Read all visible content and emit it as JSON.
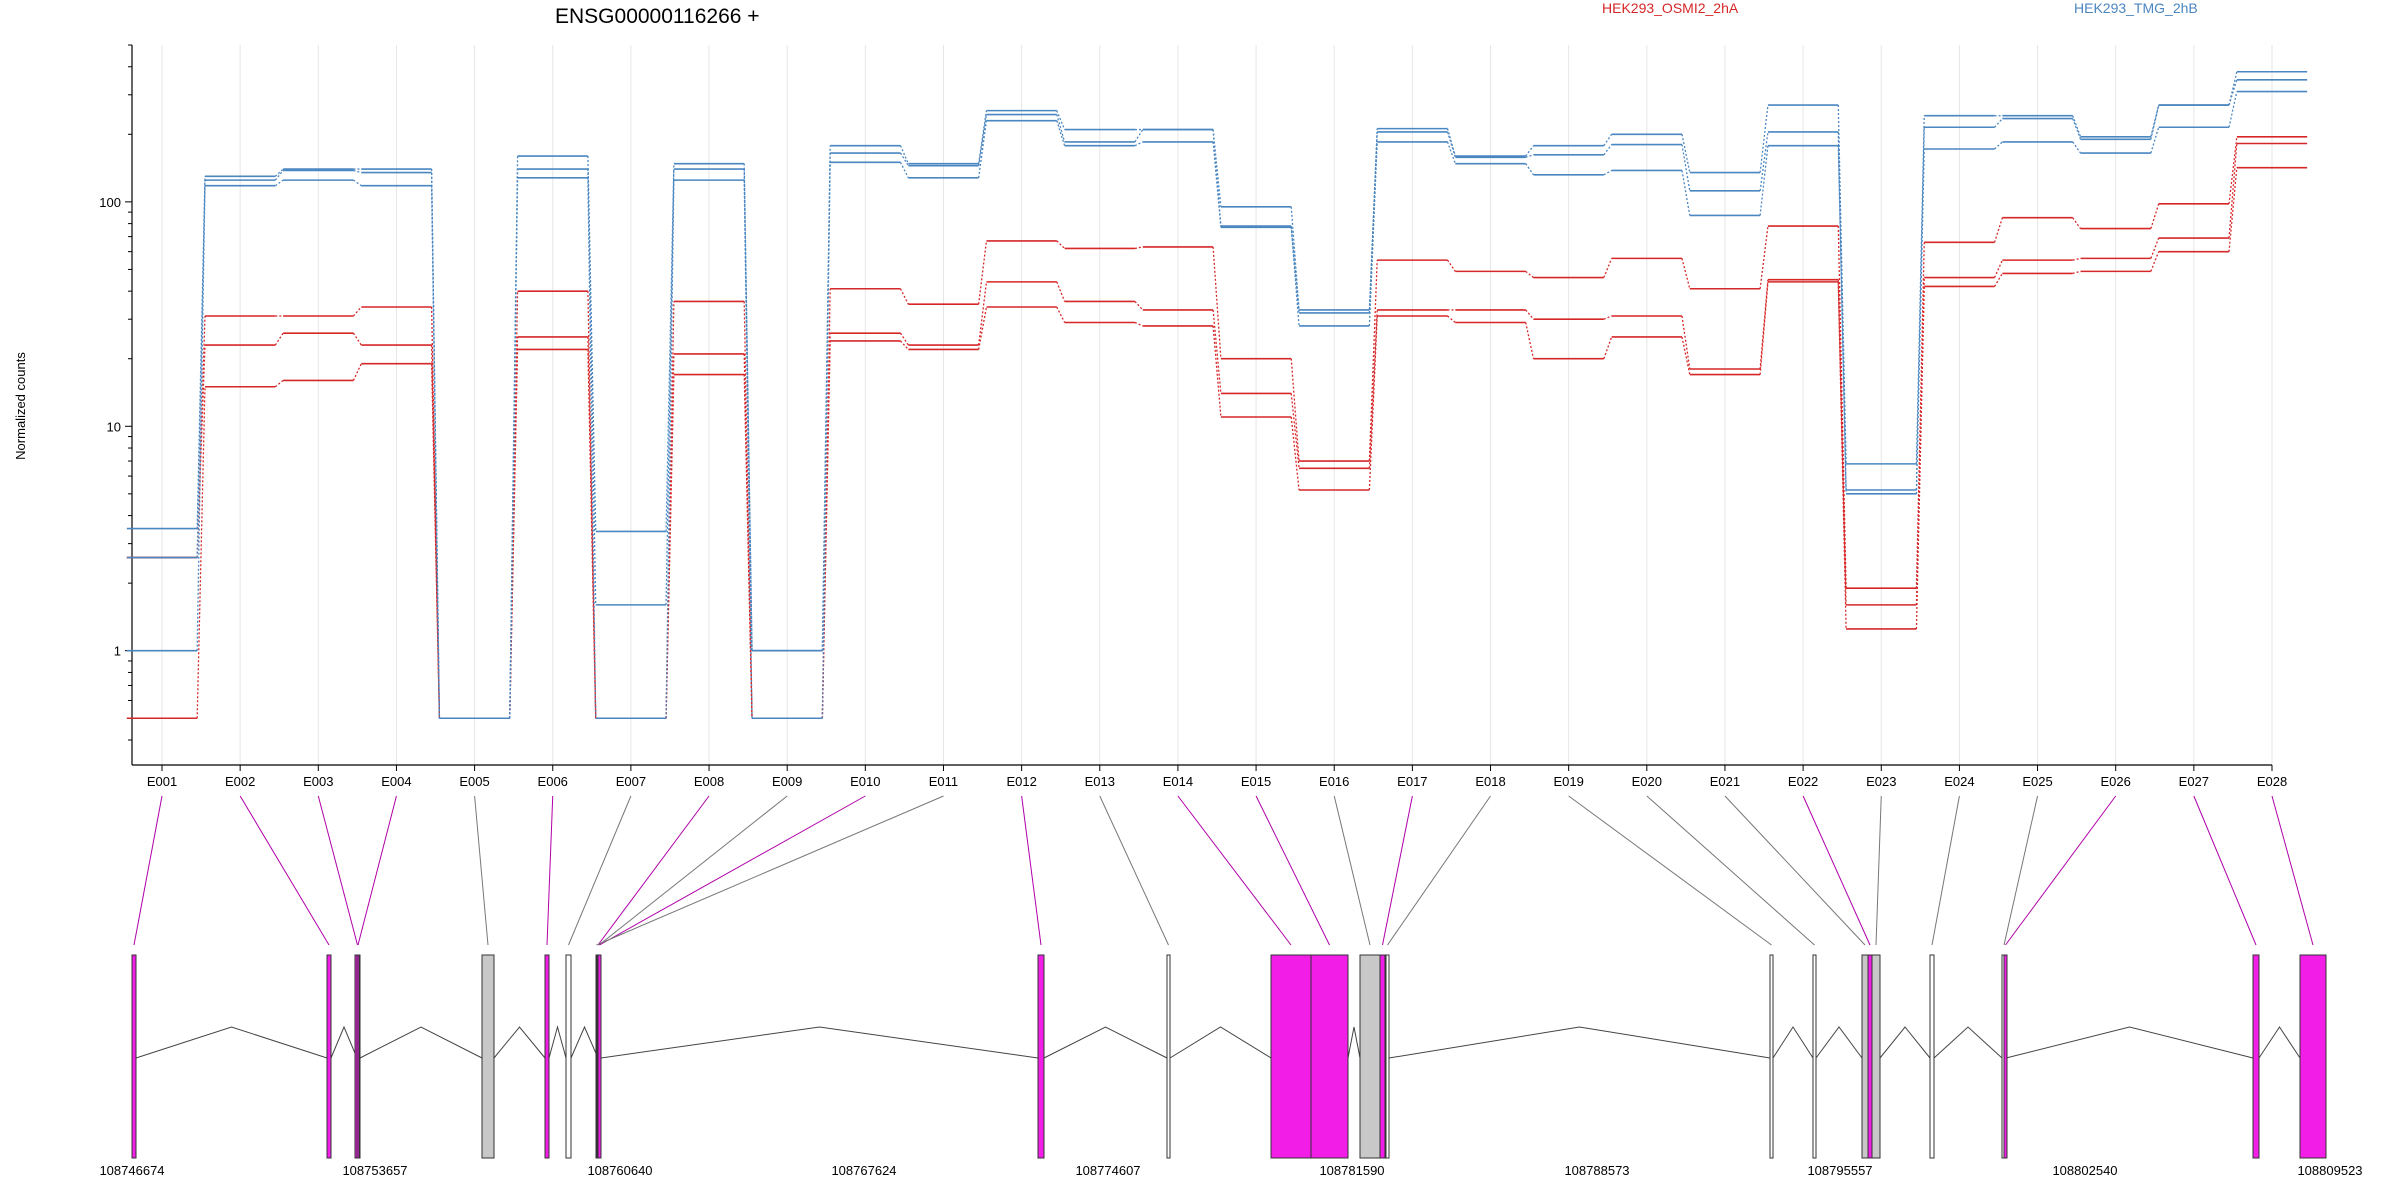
{
  "chart_data": {
    "type": "line",
    "title": "ENSG00000116266 +",
    "ylabel": "Normalized counts",
    "yscale": "log",
    "ylim": [
      0.4,
      500
    ],
    "y_ticks": [
      1,
      10,
      100
    ],
    "y_tick_labels": [
      "1",
      "10",
      "100"
    ],
    "grid": "vertical gridlines at exon bins",
    "legend_placement": "top, above plot",
    "categories": [
      "E001",
      "E002",
      "E003",
      "E004",
      "E005",
      "E006",
      "E007",
      "E008",
      "E009",
      "E010",
      "E011",
      "E012",
      "E013",
      "E014",
      "E015",
      "E016",
      "E017",
      "E018",
      "E019",
      "E020",
      "E021",
      "E022",
      "E023",
      "E024",
      "E025",
      "E026",
      "E027",
      "E028"
    ],
    "groups": [
      {
        "name": "HEK293_OSMI2_2hA",
        "color": "#d62728"
      },
      {
        "name": "HEK293_TMG_2hB",
        "color": "#4a86c0"
      }
    ],
    "series": [
      {
        "group": "HEK293_OSMI2_2hA",
        "values": [
          2.6,
          31,
          31,
          34,
          0.5,
          40,
          0.5,
          36,
          0.5,
          41,
          35,
          67,
          62,
          63,
          20,
          7,
          55,
          49,
          46,
          56,
          41,
          78,
          1.9,
          66,
          85,
          76,
          98,
          195
        ]
      },
      {
        "group": "HEK293_OSMI2_2hA",
        "values": [
          2.6,
          23,
          26,
          23,
          0.5,
          25,
          0.5,
          21,
          0.5,
          26,
          23,
          44,
          36,
          33,
          14,
          6.5,
          33,
          33,
          30,
          31,
          18,
          45,
          1.6,
          46,
          55,
          56,
          69,
          182
        ]
      },
      {
        "group": "HEK293_OSMI2_2hA",
        "values": [
          0.5,
          15,
          16,
          19,
          0.5,
          22,
          0.5,
          17,
          0.5,
          24,
          22,
          34,
          29,
          28,
          11,
          5.2,
          31,
          29,
          20,
          25,
          17,
          44,
          1.25,
          42,
          48,
          49,
          60,
          142
        ]
      },
      {
        "group": "HEK293_TMG_2hB",
        "values": [
          3.5,
          130,
          140,
          140,
          0.5,
          160,
          3.4,
          148,
          1.0,
          178,
          148,
          255,
          210,
          210,
          95,
          33,
          212,
          160,
          178,
          200,
          135,
          270,
          6.8,
          242,
          242,
          195,
          270,
          380
        ]
      },
      {
        "group": "HEK293_TMG_2hB",
        "values": [
          2.6,
          125,
          138,
          135,
          0.5,
          140,
          1.6,
          140,
          1.0,
          165,
          145,
          245,
          185,
          210,
          78,
          32,
          205,
          158,
          162,
          180,
          112,
          205,
          5.2,
          215,
          235,
          190,
          270,
          350
        ]
      },
      {
        "group": "HEK293_TMG_2hB",
        "values": [
          1.0,
          118,
          125,
          118,
          0.5,
          128,
          0.5,
          125,
          0.5,
          150,
          128,
          230,
          178,
          185,
          77,
          28,
          185,
          148,
          132,
          138,
          87,
          178,
          5.0,
          172,
          185,
          165,
          215,
          310
        ]
      }
    ],
    "gene_model": {
      "coordinate_labels": [
        "108746674",
        "108753657",
        "108760640",
        "108767624",
        "108774607",
        "108781590",
        "108788573",
        "108795557",
        "108802540",
        "108809523"
      ],
      "highlighted_exons": [
        "E001",
        "E002",
        "E003",
        "E004",
        "E006",
        "E008",
        "E010",
        "E012",
        "E014",
        "E015",
        "E017",
        "E022",
        "E026",
        "E027",
        "E028"
      ],
      "highlight_color": "#f21ee8",
      "plain_exon_color": "#ffffff",
      "partial_exon_color": "#c8c8c8"
    }
  }
}
